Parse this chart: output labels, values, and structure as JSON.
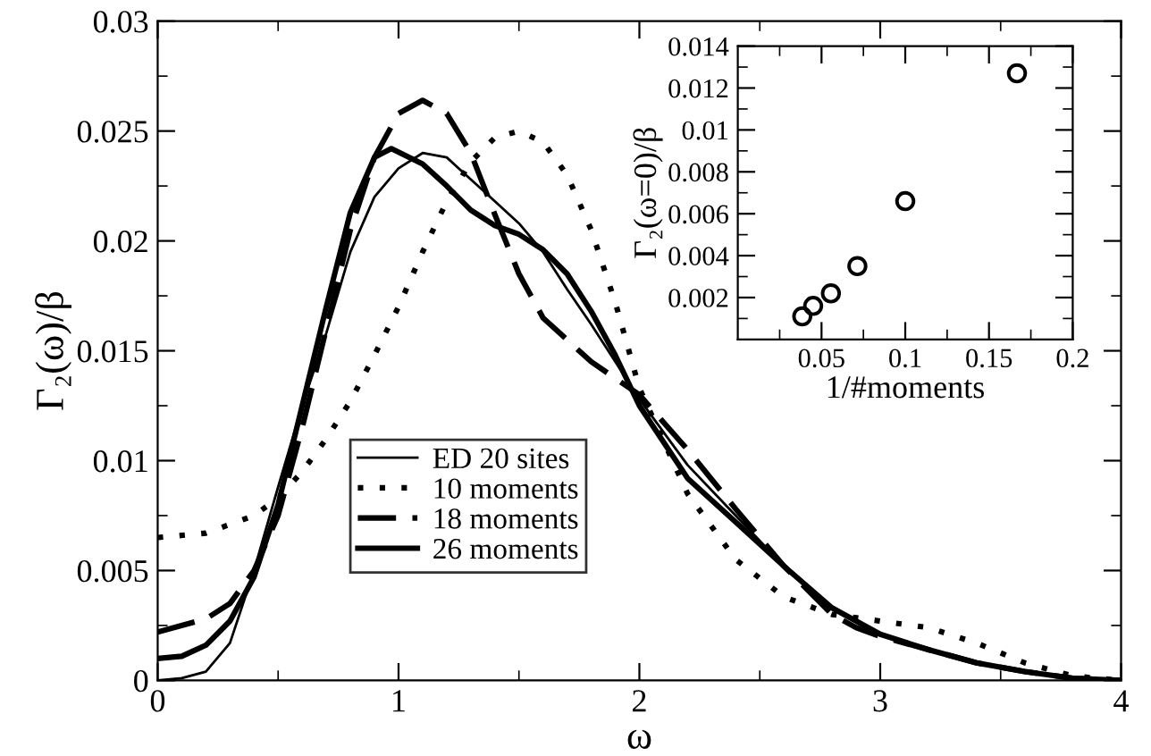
{
  "chart_data": [
    {
      "type": "line",
      "xlabel": "ω",
      "ylabel": "Γ₂(ω)/β",
      "xlim": [
        0,
        4
      ],
      "ylim": [
        0,
        0.03
      ],
      "xticks": [
        0,
        {
          "value": 0.5,
          "label": null
        },
        1,
        {
          "value": 1.5,
          "label": null
        },
        2,
        {
          "value": 2.5,
          "label": null
        },
        3,
        {
          "value": 3.5,
          "label": null
        },
        4
      ],
      "yticks": [
        0,
        {
          "value": 0.0025,
          "label": null
        },
        0.005,
        {
          "value": 0.0075,
          "label": null
        },
        0.01,
        {
          "value": 0.0125,
          "label": null
        },
        0.015,
        {
          "value": 0.0175,
          "label": null
        },
        0.02,
        {
          "value": 0.0225,
          "label": null
        },
        0.025,
        {
          "value": 0.0275,
          "label": null
        },
        0.03
      ],
      "legend": "center left",
      "grid": false,
      "marker": "none",
      "series": [
        {
          "name": "ED 20 sites",
          "color": "#000000",
          "line_style": "solid",
          "x": [
            0,
            0.1,
            0.2,
            0.3,
            0.4,
            0.5,
            0.6,
            0.7,
            0.8,
            0.9,
            1.0,
            1.1,
            1.2,
            1.3,
            1.4,
            1.5,
            1.6,
            1.7,
            1.8,
            1.9,
            2.0,
            2.2,
            2.4,
            2.6,
            2.8,
            3.0,
            3.2,
            3.4,
            3.6,
            3.8,
            4.0
          ],
          "values": [
            0,
            0.0001,
            0.0004,
            0.0017,
            0.005,
            0.0088,
            0.0125,
            0.0158,
            0.0195,
            0.022,
            0.0233,
            0.024,
            0.0238,
            0.0228,
            0.0218,
            0.0208,
            0.0195,
            0.0178,
            0.0162,
            0.0145,
            0.0128,
            0.0098,
            0.0075,
            0.0052,
            0.0033,
            0.0021,
            0.0014,
            0.0008,
            0.0004,
            0.0001,
            0
          ]
        },
        {
          "name": "10 moments",
          "color": "#000000",
          "line_style": "dotted",
          "x": [
            0,
            0.2,
            0.4,
            0.5,
            0.6,
            0.7,
            0.8,
            0.9,
            1.0,
            1.1,
            1.2,
            1.3,
            1.4,
            1.5,
            1.6,
            1.7,
            1.8,
            1.9,
            2.0,
            2.2,
            2.4,
            2.6,
            2.8,
            3.0,
            3.2,
            3.4,
            3.6,
            3.8,
            4.0
          ],
          "values": [
            0.0065,
            0.0067,
            0.0075,
            0.0083,
            0.0095,
            0.011,
            0.0127,
            0.0148,
            0.017,
            0.0195,
            0.0218,
            0.0236,
            0.0247,
            0.025,
            0.0245,
            0.023,
            0.0205,
            0.0172,
            0.0133,
            0.0085,
            0.0055,
            0.0038,
            0.003,
            0.0027,
            0.0024,
            0.0017,
            0.0008,
            0.0002,
            0
          ]
        },
        {
          "name": "18 moments",
          "color": "#000000",
          "line_style": "dashed",
          "x": [
            0,
            0.2,
            0.3,
            0.4,
            0.5,
            0.6,
            0.7,
            0.8,
            0.9,
            1.0,
            1.1,
            1.2,
            1.3,
            1.4,
            1.5,
            1.6,
            1.8,
            2.0,
            2.2,
            2.4,
            2.6,
            2.8,
            2.9,
            3.0,
            3.2,
            3.4,
            3.6,
            3.8,
            4.0
          ],
          "values": [
            0.0022,
            0.0028,
            0.0035,
            0.005,
            0.0075,
            0.0115,
            0.016,
            0.0205,
            0.0238,
            0.0258,
            0.0264,
            0.0258,
            0.024,
            0.0212,
            0.0185,
            0.0165,
            0.0145,
            0.013,
            0.0105,
            0.0078,
            0.0052,
            0.003,
            0.0024,
            0.002,
            0.0014,
            0.0008,
            0.0004,
            0.0001,
            0
          ]
        },
        {
          "name": "26 moments",
          "color": "#000000",
          "line_style": "solid",
          "x": [
            0,
            0.1,
            0.2,
            0.3,
            0.4,
            0.5,
            0.6,
            0.7,
            0.8,
            0.9,
            0.97,
            1.1,
            1.2,
            1.3,
            1.4,
            1.5,
            1.6,
            1.7,
            1.8,
            1.9,
            2.0,
            2.2,
            2.4,
            2.6,
            2.8,
            3.0,
            3.2,
            3.4,
            3.6,
            3.8,
            4.0
          ],
          "values": [
            0.001,
            0.0011,
            0.0016,
            0.0027,
            0.0047,
            0.008,
            0.0125,
            0.017,
            0.0213,
            0.0238,
            0.0242,
            0.0235,
            0.0225,
            0.0214,
            0.0207,
            0.0203,
            0.0196,
            0.0185,
            0.0168,
            0.0148,
            0.0125,
            0.0092,
            0.0072,
            0.0052,
            0.0033,
            0.0021,
            0.0014,
            0.0008,
            0.0004,
            0.0001,
            0
          ]
        }
      ]
    },
    {
      "type": "scatter",
      "xlabel": "1/#moments",
      "ylabel": "Γ₂(ω=0)/β",
      "xlim": [
        0,
        0.2
      ],
      "ylim": [
        0,
        0.014
      ],
      "xticks": [
        {
          "value": 0.025,
          "label": null
        },
        0.05,
        {
          "value": 0.075,
          "label": null
        },
        0.1,
        {
          "value": 0.125,
          "label": null
        },
        0.15,
        {
          "value": 0.175,
          "label": null
        },
        0.2
      ],
      "yticks": [
        {
          "value": 0.001,
          "label": null
        },
        0.002,
        {
          "value": 0.003,
          "label": null
        },
        0.004,
        {
          "value": 0.005,
          "label": null
        },
        0.006,
        {
          "value": 0.007,
          "label": null
        },
        0.008,
        {
          "value": 0.009,
          "label": null
        },
        0.01,
        {
          "value": 0.011,
          "label": null
        },
        0.012,
        {
          "value": 0.013,
          "label": null
        },
        0.014
      ],
      "marker": "circle",
      "grid": false,
      "series": [
        {
          "color": "#000000",
          "x": [
            0.0385,
            0.045,
            0.0556,
            0.0714,
            0.1,
            0.1667
          ],
          "values": [
            0.0011,
            0.0016,
            0.0022,
            0.0035,
            0.0066,
            0.0127
          ]
        }
      ]
    }
  ]
}
